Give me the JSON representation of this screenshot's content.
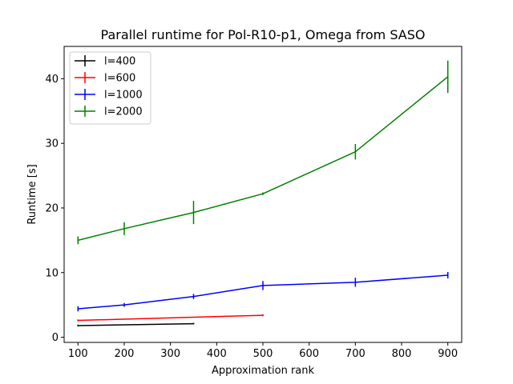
{
  "chart_data": {
    "type": "line",
    "title": "Parallel runtime for Pol-R10-p1, Omega from SASO",
    "xlabel": "Approximation rank",
    "ylabel": "Runtime [s]",
    "xlim": [
      70,
      930
    ],
    "ylim": [
      -0.8,
      45
    ],
    "xticks": [
      100,
      200,
      300,
      400,
      500,
      600,
      700,
      800,
      900
    ],
    "yticks": [
      0,
      10,
      20,
      30,
      40
    ],
    "grid": false,
    "legend_position": "top-left",
    "series": [
      {
        "name": "l=400",
        "color": "#000000",
        "x": [
          100,
          350
        ],
        "y": [
          1.8,
          2.1
        ],
        "err": [
          0.15,
          0.1
        ]
      },
      {
        "name": "l=600",
        "color": "#ff0000",
        "x": [
          100,
          500
        ],
        "y": [
          2.6,
          3.4
        ],
        "err": [
          0.15,
          0.15
        ]
      },
      {
        "name": "l=1000",
        "color": "#0000ff",
        "x": [
          100,
          200,
          350,
          500,
          700,
          900
        ],
        "y": [
          4.4,
          5.0,
          6.3,
          8.0,
          8.5,
          9.6
        ],
        "err": [
          0.4,
          0.3,
          0.4,
          0.7,
          0.7,
          0.5
        ]
      },
      {
        "name": "l=2000",
        "color": "#008000",
        "x": [
          100,
          200,
          350,
          500,
          700,
          900
        ],
        "y": [
          15.0,
          16.8,
          19.3,
          22.2,
          28.7,
          40.3
        ],
        "err": [
          0.6,
          1.0,
          1.8,
          0.2,
          1.2,
          2.5
        ]
      }
    ]
  }
}
